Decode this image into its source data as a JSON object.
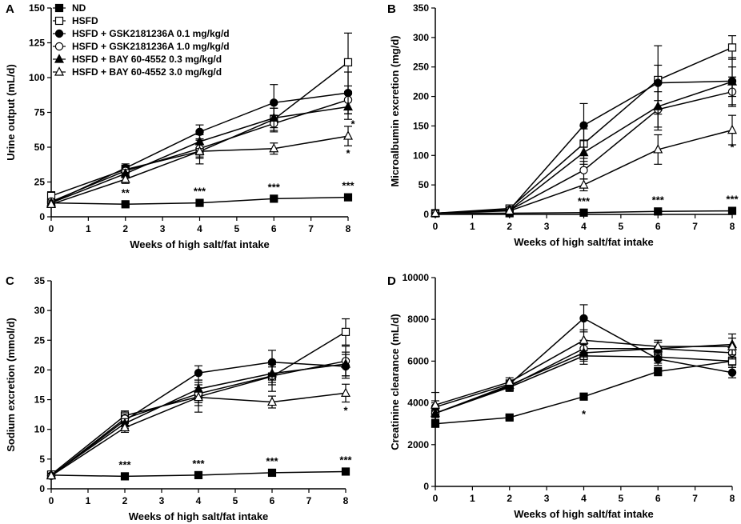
{
  "legend": [
    {
      "name": "ND",
      "marker": "square",
      "filled": true
    },
    {
      "name": "HSFD",
      "marker": "square",
      "filled": false
    },
    {
      "name": "HSFD + GSK2181236A 0.1 mg/kg/d",
      "marker": "circle",
      "filled": true
    },
    {
      "name": "HSFD + GSK2181236A 1.0 mg/kg/d",
      "marker": "circle",
      "filled": false
    },
    {
      "name": "HSFD + BAY 60-4552 0.3 mg/kg/d",
      "marker": "triangle",
      "filled": true
    },
    {
      "name": "HSFD + BAY 60-4552 3.0 mg/kg/d",
      "marker": "triangle",
      "filled": false
    }
  ],
  "chart_data": [
    {
      "type": "line",
      "panel": "A",
      "title": "",
      "xlabel": "Weeks of high salt/fat intake",
      "ylabel": "Urine output (mL/d)",
      "x_ticks": [
        "0",
        "1",
        "2",
        "3",
        "4",
        "5",
        "6",
        "7",
        "8"
      ],
      "y_ticks": [
        "0",
        "25",
        "50",
        "75",
        "100",
        "125",
        "150"
      ],
      "xlim": [
        0,
        8
      ],
      "ylim": [
        0,
        150
      ],
      "x": [
        0,
        2,
        4,
        6,
        8
      ],
      "series": [
        {
          "name": "ND",
          "values": [
            10,
            9,
            10,
            13,
            14
          ],
          "errors": [
            1,
            1,
            1,
            1,
            1
          ]
        },
        {
          "name": "HSFD",
          "values": [
            15,
            34,
            47,
            70,
            111
          ],
          "errors": [
            3,
            3,
            5,
            8,
            21
          ]
        },
        {
          "name": "HSFD + GSK2181236A 0.1 mg/kg/d",
          "values": [
            10,
            35,
            61,
            82,
            89
          ],
          "errors": [
            2,
            3,
            5,
            13,
            15
          ]
        },
        {
          "name": "HSFD + GSK2181236A 1.0 mg/kg/d",
          "values": [
            11,
            33,
            49,
            67,
            84
          ],
          "errors": [
            2,
            4,
            6,
            6,
            10
          ]
        },
        {
          "name": "HSFD + BAY 60-4552 0.3 mg/kg/d",
          "values": [
            10,
            31,
            54,
            71,
            79
          ],
          "errors": [
            2,
            3,
            5,
            7,
            9
          ]
        },
        {
          "name": "HSFD + BAY 60-4552 3.0 mg/kg/d",
          "values": [
            9,
            27,
            47,
            49,
            58
          ],
          "errors": [
            2,
            3,
            9,
            4,
            7
          ]
        }
      ],
      "annotations": [
        {
          "x": 2,
          "y": 9,
          "text": "**"
        },
        {
          "x": 4,
          "y": 10,
          "text": "***"
        },
        {
          "x": 6,
          "y": 13,
          "text": "***"
        },
        {
          "x": 8,
          "y": 14,
          "text": "***"
        },
        {
          "x": 8,
          "y": 79,
          "text": "*"
        },
        {
          "x": 8,
          "y": 58,
          "text": "*"
        }
      ]
    },
    {
      "type": "line",
      "panel": "B",
      "title": "",
      "xlabel": "Weeks of high salt/fat intake",
      "ylabel": "Microalbumin excretion (mg/d)",
      "x_ticks": [
        "0",
        "1",
        "2",
        "3",
        "4",
        "5",
        "6",
        "7",
        "8"
      ],
      "y_ticks": [
        "0",
        "50",
        "100",
        "150",
        "200",
        "250",
        "300",
        "350"
      ],
      "xlim": [
        0,
        8
      ],
      "ylim": [
        0,
        350
      ],
      "x": [
        0,
        2,
        4,
        6,
        8
      ],
      "series": [
        {
          "name": "ND",
          "values": [
            2,
            2,
            3,
            5,
            6
          ],
          "errors": [
            1,
            1,
            1,
            1,
            1
          ]
        },
        {
          "name": "HSFD",
          "values": [
            2,
            10,
            120,
            228,
            283
          ],
          "errors": [
            1,
            3,
            25,
            58,
            20
          ]
        },
        {
          "name": "HSFD + GSK2181236A 0.1 mg/kg/d",
          "values": [
            2,
            8,
            151,
            223,
            226
          ],
          "errors": [
            1,
            3,
            37,
            30,
            40
          ]
        },
        {
          "name": "HSFD + GSK2181236A 1.0 mg/kg/d",
          "values": [
            2,
            7,
            75,
            178,
            208
          ],
          "errors": [
            1,
            2,
            15,
            30,
            25
          ]
        },
        {
          "name": "HSFD + BAY 60-4552 0.3 mg/kg/d",
          "values": [
            2,
            7,
            105,
            183,
            225
          ],
          "errors": [
            1,
            2,
            20,
            40,
            25
          ]
        },
        {
          "name": "HSFD + BAY 60-4552 3.0 mg/kg/d",
          "values": [
            2,
            6,
            50,
            110,
            143
          ],
          "errors": [
            1,
            2,
            10,
            25,
            25
          ]
        }
      ],
      "annotations": [
        {
          "x": 4,
          "y": 3,
          "text": "***"
        },
        {
          "x": 6,
          "y": 5,
          "text": "***"
        },
        {
          "x": 8,
          "y": 6,
          "text": "***"
        },
        {
          "x": 8,
          "y": 143,
          "text": "*"
        }
      ]
    },
    {
      "type": "line",
      "panel": "C",
      "title": "",
      "xlabel": "Weeks of high salt/fat intake",
      "ylabel": "Sodium excretion (mmol/d)",
      "x_ticks": [
        "0",
        "1",
        "2",
        "3",
        "4",
        "5",
        "6",
        "7",
        "8"
      ],
      "y_ticks": [
        "0",
        "5",
        "10",
        "15",
        "20",
        "25",
        "30",
        "35"
      ],
      "xlim": [
        0,
        8
      ],
      "ylim": [
        0,
        35
      ],
      "x": [
        0,
        2,
        4,
        6,
        8
      ],
      "series": [
        {
          "name": "ND",
          "values": [
            2.3,
            2.1,
            2.3,
            2.7,
            2.9
          ],
          "errors": [
            0.2,
            0.2,
            0.2,
            0.2,
            0.2
          ]
        },
        {
          "name": "HSFD",
          "values": [
            2.4,
            12.3,
            15.5,
            18.9,
            26.4
          ],
          "errors": [
            0.3,
            0.8,
            1.5,
            2.5,
            2.2
          ]
        },
        {
          "name": "HSFD + GSK2181236A 0.1 mg/kg/d",
          "values": [
            2.2,
            11.5,
            19.5,
            21.3,
            20.6
          ],
          "errors": [
            0.3,
            0.8,
            1.2,
            2.0,
            2.0
          ]
        },
        {
          "name": "HSFD + GSK2181236A 1.0 mg/kg/d",
          "values": [
            2.2,
            11.8,
            16.0,
            19.0,
            21.5
          ],
          "errors": [
            0.3,
            0.8,
            1.5,
            1.5,
            2.5
          ]
        },
        {
          "name": "HSFD + BAY 60-4552 0.3 mg/kg/d",
          "values": [
            2.3,
            11.0,
            16.8,
            19.4,
            21.0
          ],
          "errors": [
            0.3,
            0.8,
            1.5,
            1.5,
            2.0
          ]
        },
        {
          "name": "HSFD + BAY 60-4552 3.0 mg/kg/d",
          "values": [
            2.2,
            10.3,
            15.4,
            14.6,
            16.1
          ],
          "errors": [
            0.3,
            0.8,
            2.5,
            1.0,
            1.5
          ]
        }
      ],
      "annotations": [
        {
          "x": 2,
          "y": 2.1,
          "text": "***"
        },
        {
          "x": 4,
          "y": 2.3,
          "text": "***"
        },
        {
          "x": 6,
          "y": 2.7,
          "text": "***"
        },
        {
          "x": 8,
          "y": 2.9,
          "text": "***"
        },
        {
          "x": 8,
          "y": 16.1,
          "text": "*"
        }
      ]
    },
    {
      "type": "line",
      "panel": "D",
      "title": "",
      "xlabel": "Weeks of high salt/fat intake",
      "ylabel": "Creatinine clearance (mL/d)",
      "x_ticks": [
        "0",
        "1",
        "2",
        "3",
        "4",
        "5",
        "6",
        "7",
        "8"
      ],
      "y_ticks": [
        "0",
        "2000",
        "4000",
        "6000",
        "8000",
        "10000"
      ],
      "xlim": [
        0,
        8
      ],
      "ylim": [
        0,
        10000
      ],
      "x": [
        0,
        2,
        4,
        6,
        8
      ],
      "series": [
        {
          "name": "ND",
          "values": [
            3000,
            3300,
            4300,
            5500,
            6000
          ],
          "errors": [
            100,
            100,
            150,
            200,
            200
          ]
        },
        {
          "name": "HSFD",
          "values": [
            3500,
            4750,
            6250,
            6200,
            6000
          ],
          "errors": [
            300,
            200,
            400,
            300,
            300
          ]
        },
        {
          "name": "HSFD + GSK2181236A 0.1 mg/kg/d",
          "values": [
            3800,
            4900,
            8050,
            6100,
            5450
          ],
          "errors": [
            300,
            200,
            650,
            300,
            250
          ]
        },
        {
          "name": "HSFD + GSK2181236A 1.0 mg/kg/d",
          "values": [
            3500,
            4800,
            6600,
            6600,
            6400
          ],
          "errors": [
            300,
            200,
            400,
            300,
            300
          ]
        },
        {
          "name": "HSFD + BAY 60-4552 0.3 mg/kg/d",
          "values": [
            3500,
            4850,
            6400,
            6600,
            6800
          ],
          "errors": [
            300,
            200,
            400,
            300,
            500
          ]
        },
        {
          "name": "HSFD + BAY 60-4552 3.0 mg/kg/d",
          "values": [
            3900,
            5000,
            7000,
            6700,
            6700
          ],
          "errors": [
            600,
            200,
            500,
            300,
            400
          ]
        }
      ],
      "annotations": [
        {
          "x": 4,
          "y": 4300,
          "text": "*"
        }
      ]
    }
  ]
}
